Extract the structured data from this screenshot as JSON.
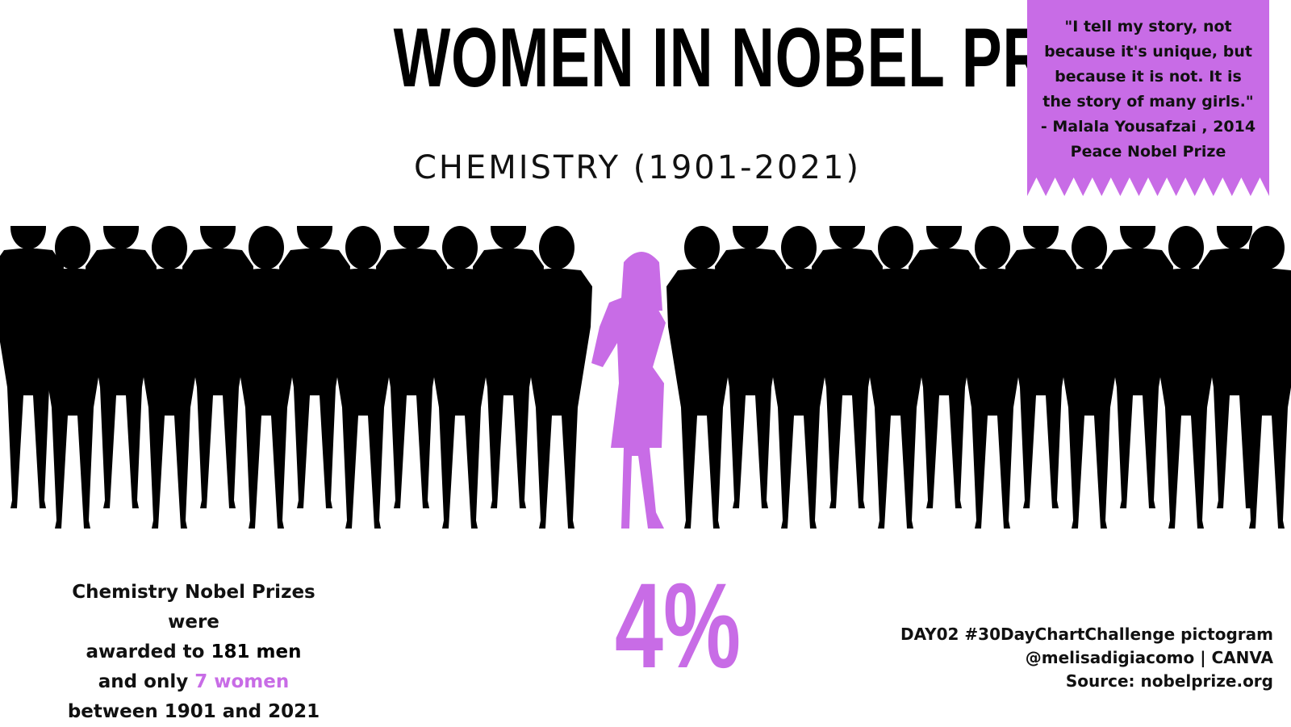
{
  "title": "WOMEN IN NOBEL PRIZE",
  "subtitle": "CHEMISTRY (1901-2021)",
  "quote": "\"I tell my story, not because it's unique, but because it is not. It is the story of many girls.\" - Malala Yousafzai , 2014 Peace Nobel Prize",
  "summary": {
    "line1": "Chemistry Nobel Prizes were",
    "line2_prefix": "awarded to ",
    "men_text": "181 men",
    "line3_prefix": "and only ",
    "women_text": "7 women",
    "line4": "between 1901 and 2021"
  },
  "percent": "4%",
  "credits": {
    "line1": "DAY02 #30DayChartChallenge pictogram",
    "line2": "@melisadigiacomo | CANVA",
    "line3": "Source: nobelprize.org"
  },
  "colors": {
    "women": "#c86ce6",
    "men": "#000000",
    "quote_bg": "#c86ce6"
  },
  "chart_data": {
    "type": "pictogram",
    "categories": [
      "men",
      "women"
    ],
    "values": [
      181,
      7
    ],
    "women_share_percent": 4
  }
}
